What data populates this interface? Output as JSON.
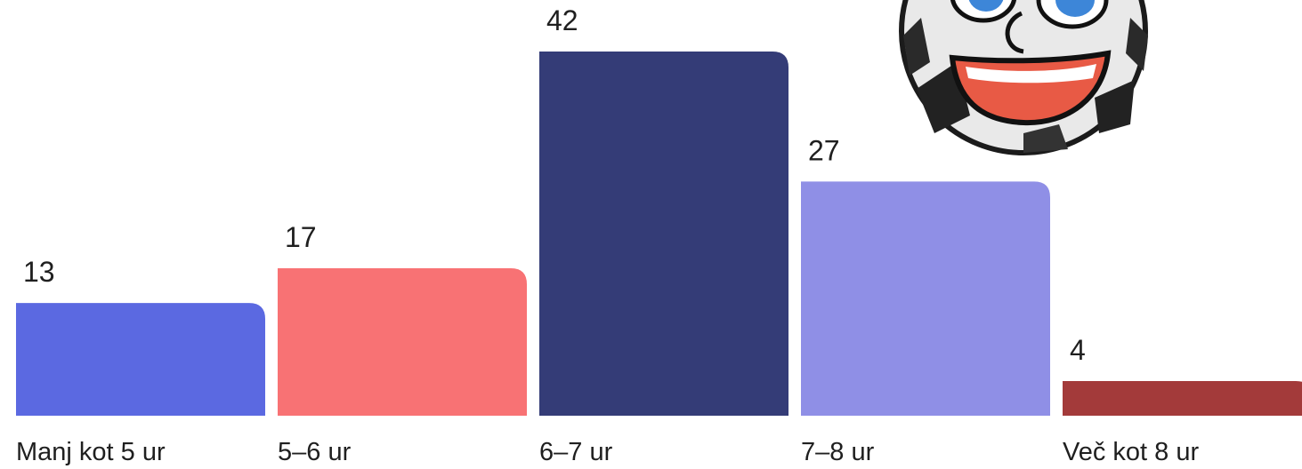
{
  "chart_data": {
    "type": "bar",
    "categories": [
      "Manj kot 5 ur",
      "5–6 ur",
      "6–7 ur",
      "7–8 ur",
      "Več kot 8 ur"
    ],
    "values": [
      13,
      17,
      42,
      27,
      4
    ],
    "colors": [
      "#5b69e1",
      "#f87274",
      "#343c77",
      "#8f8fe6",
      "#a33a3a"
    ]
  }
}
